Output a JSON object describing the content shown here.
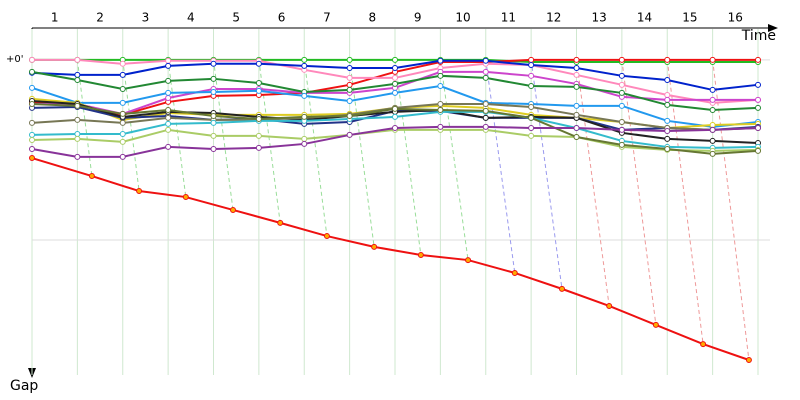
{
  "chart_data": {
    "type": "line",
    "x_label": "Time",
    "y_label": "Gap",
    "x": [
      0,
      1,
      2,
      3,
      4,
      5,
      6,
      7,
      8,
      9,
      10,
      11,
      12,
      13,
      14,
      15,
      16
    ],
    "xlim": [
      0,
      16
    ],
    "xticks": [
      {
        "value": 0.5,
        "label": "1"
      },
      {
        "value": 1.5,
        "label": "2"
      },
      {
        "value": 2.5,
        "label": "3"
      },
      {
        "value": 3.5,
        "label": "4"
      },
      {
        "value": 4.5,
        "label": "5"
      },
      {
        "value": 5.5,
        "label": "6"
      },
      {
        "value": 6.5,
        "label": "7"
      },
      {
        "value": 7.5,
        "label": "8"
      },
      {
        "value": 8.5,
        "label": "9"
      },
      {
        "value": 9.5,
        "label": "10"
      },
      {
        "value": 10.5,
        "label": "11"
      },
      {
        "value": 11.5,
        "label": "12"
      },
      {
        "value": 12.5,
        "label": "13"
      },
      {
        "value": 13.5,
        "label": "14"
      },
      {
        "value": 14.5,
        "label": "15"
      },
      {
        "value": 15.5,
        "label": "16"
      }
    ],
    "ylim": [
      -13.3,
      105
    ],
    "y_inverted": true,
    "yticks": [
      {
        "value": 0,
        "label": "+0'"
      },
      {
        "value": 60,
        "label": null
      }
    ],
    "grid": true,
    "guide_colors": [
      "#9d9",
      "#9d9",
      "#9d9",
      "#9d9",
      "#9d9",
      "#9d9",
      "#9d9",
      "#9d9",
      "#9d9",
      "#99e",
      "#99e",
      "#e99",
      "#e99",
      "#e99",
      "#e99"
    ],
    "series": [
      {
        "color": "#22bb22",
        "values": [
          0,
          0,
          0,
          0,
          0,
          0,
          0,
          0,
          0,
          0,
          0,
          0.7,
          0.7,
          0.7,
          0.7,
          0.7,
          0.7
        ]
      },
      {
        "color": "#ee1111",
        "values": [
          14,
          14.7,
          18.3,
          14,
          12,
          11.7,
          11,
          8.3,
          4,
          0.7,
          0.7,
          0,
          0,
          0,
          0,
          0,
          0
        ]
      },
      {
        "color": "#ff88bb",
        "values": [
          0,
          0,
          1.3,
          0.3,
          0.3,
          0.3,
          3.3,
          6,
          6,
          2.7,
          1.3,
          1.7,
          5,
          8.3,
          11.7,
          14.3,
          13.3
        ]
      },
      {
        "color": "#0022cc",
        "values": [
          4.3,
          5,
          5,
          2,
          1.3,
          1.3,
          2,
          2.7,
          2.7,
          0.3,
          0.3,
          1.7,
          2.7,
          5.3,
          6.7,
          10,
          8.3
        ]
      },
      {
        "color": "#cc44cc",
        "values": [
          14.7,
          14.7,
          18,
          12.7,
          9.7,
          9.7,
          11,
          11,
          9.3,
          4,
          4,
          5.3,
          8,
          12.3,
          13.3,
          13.3,
          13.3
        ]
      },
      {
        "color": "#228833",
        "values": [
          4,
          6.7,
          9.7,
          7,
          6.3,
          7.7,
          10.7,
          10,
          8,
          5.3,
          6,
          8.7,
          9,
          11,
          15,
          16.7,
          16
        ]
      },
      {
        "color": "#2299ee",
        "values": [
          9.3,
          14.3,
          14.3,
          11,
          10.7,
          10.3,
          12,
          13.7,
          11,
          8.7,
          14.3,
          14.7,
          15.3,
          15.3,
          20.3,
          22.3,
          20.7
        ]
      },
      {
        "color": "#ddcc22",
        "values": [
          13,
          14.3,
          20,
          17.7,
          18.3,
          18.3,
          18.3,
          18,
          16,
          15.3,
          16,
          18.3,
          19.3,
          20.7,
          22.7,
          21.7,
          21.3
        ]
      },
      {
        "color": "#223388",
        "values": [
          16,
          15.7,
          19.3,
          18.7,
          20,
          19.7,
          21.3,
          20.7,
          17,
          17,
          19.3,
          19.3,
          19.3,
          23.3,
          22.7,
          23.3,
          22.3
        ]
      },
      {
        "color": "#222222",
        "values": [
          13.7,
          14.7,
          19,
          17.3,
          17.7,
          19,
          20,
          18.7,
          17.3,
          16.7,
          19.3,
          19,
          19.3,
          24.3,
          26.3,
          27,
          27.7
        ]
      },
      {
        "color": "#777755",
        "values": [
          21,
          20,
          21,
          19.3,
          20,
          20,
          19.3,
          18.3,
          16,
          14.7,
          14.7,
          15.7,
          18.3,
          20.7,
          22.7,
          23.3,
          22.7
        ]
      },
      {
        "color": "#33bbcc",
        "values": [
          25,
          24.7,
          24.7,
          21.3,
          21,
          20.3,
          20.3,
          19.7,
          19,
          17.3,
          17.3,
          19.3,
          22.7,
          27,
          29,
          29.3,
          29
        ]
      },
      {
        "color": "#aacc66",
        "values": [
          26.7,
          26.3,
          27.3,
          23.3,
          25.3,
          25.3,
          26.3,
          25,
          23.3,
          23.3,
          23.3,
          25.3,
          25.7,
          29,
          30,
          30.3,
          30
        ]
      },
      {
        "color": "#667733",
        "values": [
          14.7,
          15.3,
          18,
          16.7,
          18.7,
          19.7,
          19,
          18.7,
          16.3,
          16.7,
          17,
          19.3,
          25.7,
          28.3,
          29.7,
          31.3,
          30.3
        ]
      },
      {
        "color": "#883399",
        "values": [
          29.7,
          32.3,
          32.3,
          29,
          29.7,
          29.3,
          28,
          25,
          22.7,
          22.3,
          22.3,
          22.7,
          22.7,
          23.3,
          23.7,
          23.3,
          22.7
        ]
      },
      {
        "color": "#ee1111",
        "marker_fill": "#ffaa00",
        "x": [
          0,
          1.32,
          2.36,
          3.39,
          4.43,
          5.47,
          6.5,
          7.54,
          8.57,
          9.61,
          10.64,
          11.68,
          12.72,
          13.75,
          14.79,
          15.8
        ],
        "values": [
          32.7,
          38.7,
          43.7,
          45.7,
          50,
          54.3,
          58.7,
          62.3,
          65,
          66.7,
          71,
          76.3,
          82,
          88.3,
          94.7,
          100
        ]
      }
    ]
  }
}
